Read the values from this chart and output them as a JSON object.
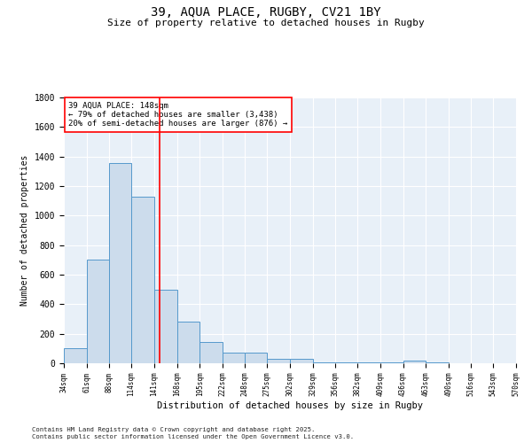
{
  "title_line1": "39, AQUA PLACE, RUGBY, CV21 1BY",
  "title_line2": "Size of property relative to detached houses in Rugby",
  "xlabel": "Distribution of detached houses by size in Rugby",
  "ylabel": "Number of detached properties",
  "bar_color": "#ccdcec",
  "bar_edge_color": "#5599cc",
  "background_color": "#e8f0f8",
  "red_line_x": 148,
  "annotation_line1": "39 AQUA PLACE: 148sqm",
  "annotation_line2": "← 79% of detached houses are smaller (3,438)",
  "annotation_line3": "20% of semi-detached houses are larger (876) →",
  "bin_edges": [
    34,
    61,
    88,
    114,
    141,
    168,
    195,
    222,
    248,
    275,
    302,
    329,
    356,
    382,
    409,
    436,
    463,
    490,
    516,
    543,
    570
  ],
  "bar_heights": [
    105,
    705,
    1355,
    1130,
    500,
    280,
    145,
    75,
    70,
    30,
    30,
    5,
    5,
    5,
    5,
    20,
    5,
    0,
    0,
    0
  ],
  "ylim": [
    0,
    1800
  ],
  "yticks": [
    0,
    200,
    400,
    600,
    800,
    1000,
    1200,
    1400,
    1600,
    1800
  ],
  "footnote1": "Contains HM Land Registry data © Crown copyright and database right 2025.",
  "footnote2": "Contains public sector information licensed under the Open Government Licence v3.0."
}
